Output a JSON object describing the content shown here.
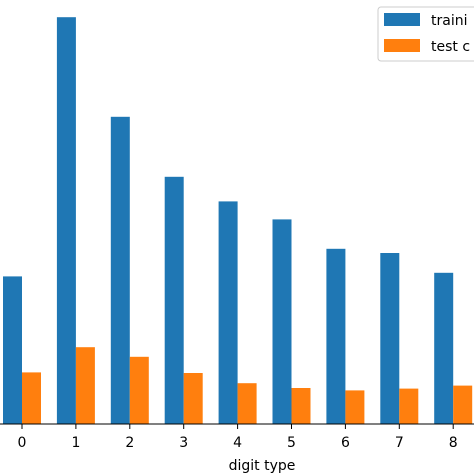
{
  "chart_data": {
    "type": "bar",
    "categories": [
      "0",
      "1",
      "2",
      "3",
      "4",
      "5",
      "6",
      "7",
      "8"
    ],
    "xlabel": "digit type",
    "ylabel": "",
    "title": "",
    "ylim": [
      0,
      6950
    ],
    "series": [
      {
        "name": "traini",
        "color": "#1f77b4",
        "values": [
          2460,
          6780,
          5120,
          4120,
          3710,
          3410,
          2920,
          2850,
          2520
        ]
      },
      {
        "name": "test c",
        "color": "#ff7f0e",
        "values": [
          860,
          1280,
          1120,
          850,
          680,
          600,
          560,
          590,
          640
        ]
      }
    ],
    "legend_position": "top-right",
    "grid": false
  }
}
